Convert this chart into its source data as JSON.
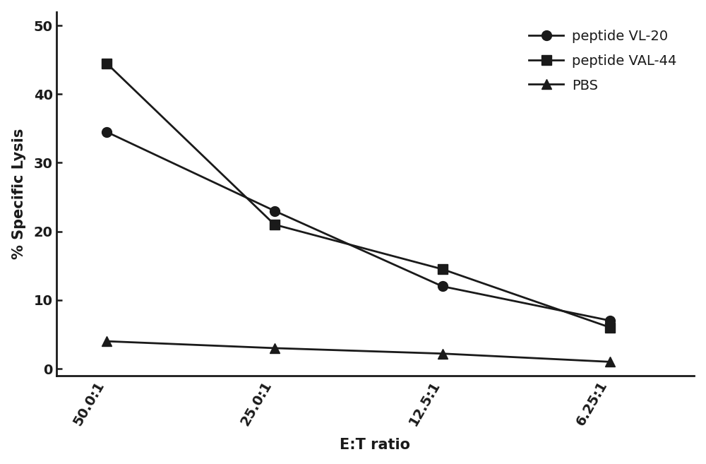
{
  "x_labels": [
    "50.0:1",
    "25.0:1",
    "12.5:1",
    "6.25:1"
  ],
  "x_positions": [
    0,
    1,
    2,
    3
  ],
  "series": [
    {
      "name": "peptide VL-20",
      "values": [
        34.5,
        23.0,
        12.0,
        7.0
      ],
      "color": "#1a1a1a",
      "marker": "o",
      "markersize": 10,
      "linewidth": 2.0
    },
    {
      "name": "peptide VAL-44",
      "values": [
        44.5,
        21.0,
        14.5,
        6.0
      ],
      "color": "#1a1a1a",
      "marker": "s",
      "markersize": 10,
      "linewidth": 2.0
    },
    {
      "name": "PBS",
      "values": [
        4.0,
        3.0,
        2.2,
        1.0
      ],
      "color": "#1a1a1a",
      "marker": "^",
      "markersize": 10,
      "linewidth": 2.0
    }
  ],
  "title": "",
  "xlabel": "E:T ratio",
  "ylabel": "% Specific Lysis",
  "ylim": [
    -1,
    52
  ],
  "yticks": [
    0,
    10,
    20,
    30,
    40,
    50
  ],
  "background_color": "#ffffff",
  "legend_fontsize": 14,
  "axis_label_fontsize": 15,
  "tick_fontsize": 14,
  "xlabel_fontsize": 15,
  "tick_rotation": 60
}
